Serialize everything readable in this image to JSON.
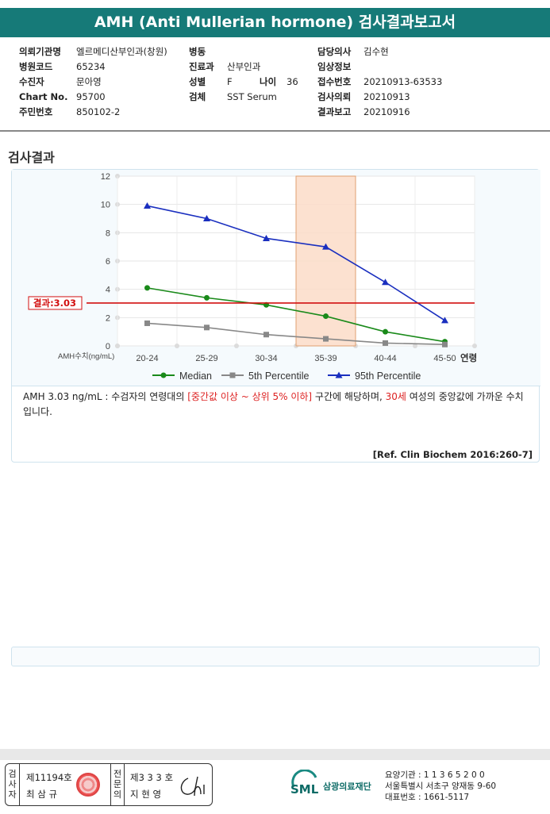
{
  "header": {
    "title": "AMH (Anti Mullerian hormone) 검사결과보고서"
  },
  "info": {
    "col1": [
      {
        "label": "의뢰기관명",
        "value": "엘르메디산부인과(창원)"
      },
      {
        "label": "병원코드",
        "value": "65234"
      },
      {
        "label": "수진자",
        "value": "문아영"
      },
      {
        "label": "Chart No.",
        "value": "95700"
      },
      {
        "label": "주민번호",
        "value": "850102-2"
      }
    ],
    "col2": [
      {
        "label": "병동",
        "value": ""
      },
      {
        "label": "진료과",
        "value": "산부인과"
      },
      {
        "label": "성별",
        "value": "F"
      },
      {
        "label": "검체",
        "value": "SST Serum"
      }
    ],
    "age": {
      "label": "나이",
      "value": "36"
    },
    "col3": [
      {
        "label": "담당의사",
        "value": "김수현"
      },
      {
        "label": "임상정보",
        "value": ""
      },
      {
        "label": "접수번호",
        "value": "20210913-63533"
      },
      {
        "label": "검사의뢰",
        "value": "20210913"
      },
      {
        "label": "결과보고",
        "value": "20210916"
      }
    ]
  },
  "section_title": "검사결과",
  "chart_data": {
    "type": "line",
    "categories": [
      "20-24",
      "25-29",
      "30-34",
      "35-39",
      "40-44",
      "45-50"
    ],
    "xlabel_left": "AMH수치(ng/mL)",
    "xlabel_right": "연령",
    "ylim": [
      0,
      12
    ],
    "yticks": [
      "0",
      "2",
      "4",
      "6",
      "8",
      "10",
      "12"
    ],
    "highlight_category": "35-39",
    "result_line": {
      "label": "결과:3.03",
      "value": 3.03
    },
    "series": [
      {
        "name": "Median",
        "color": "#1a8a1a",
        "marker": "circle",
        "values": [
          4.1,
          3.4,
          2.9,
          2.1,
          1.0,
          0.3
        ]
      },
      {
        "name": "5th Percentile",
        "color": "#888888",
        "marker": "square",
        "values": [
          1.6,
          1.3,
          0.8,
          0.5,
          0.2,
          0.1
        ]
      },
      {
        "name": "95th Percentile",
        "color": "#1a2fbf",
        "marker": "triangle",
        "values": [
          9.9,
          9.0,
          7.6,
          7.0,
          4.5,
          1.8
        ]
      }
    ]
  },
  "description": {
    "p1": "AMH  3.03 ng/mL : 수검자의 연령대의 ",
    "red1": "[중간값 이상 ~ 상위 5% 이하]",
    "p2": " 구간에 해당하며, ",
    "red2": "30세",
    "p3": " 여성의 중앙값에 가까운 수치입니다."
  },
  "reference": "[Ref. Clin Biochem 2016:260-7]",
  "signature": {
    "label1": [
      "검",
      "사",
      "자"
    ],
    "id1": "제11194호",
    "name1": "최 삼 규",
    "label2": [
      "전",
      "문",
      "의"
    ],
    "id2": "제3 3 3 호",
    "name2": "지 현 영",
    "sign": "Chi"
  },
  "footer": {
    "logo_mark": "SML",
    "logo_text": "삼광의료재단",
    "line1": "요양기관 : 1 1 3 6 5 2 0 0",
    "line2": "서울특별시 서초구 양재동 9-60",
    "line3": "대표번호 : 1661-5117"
  }
}
